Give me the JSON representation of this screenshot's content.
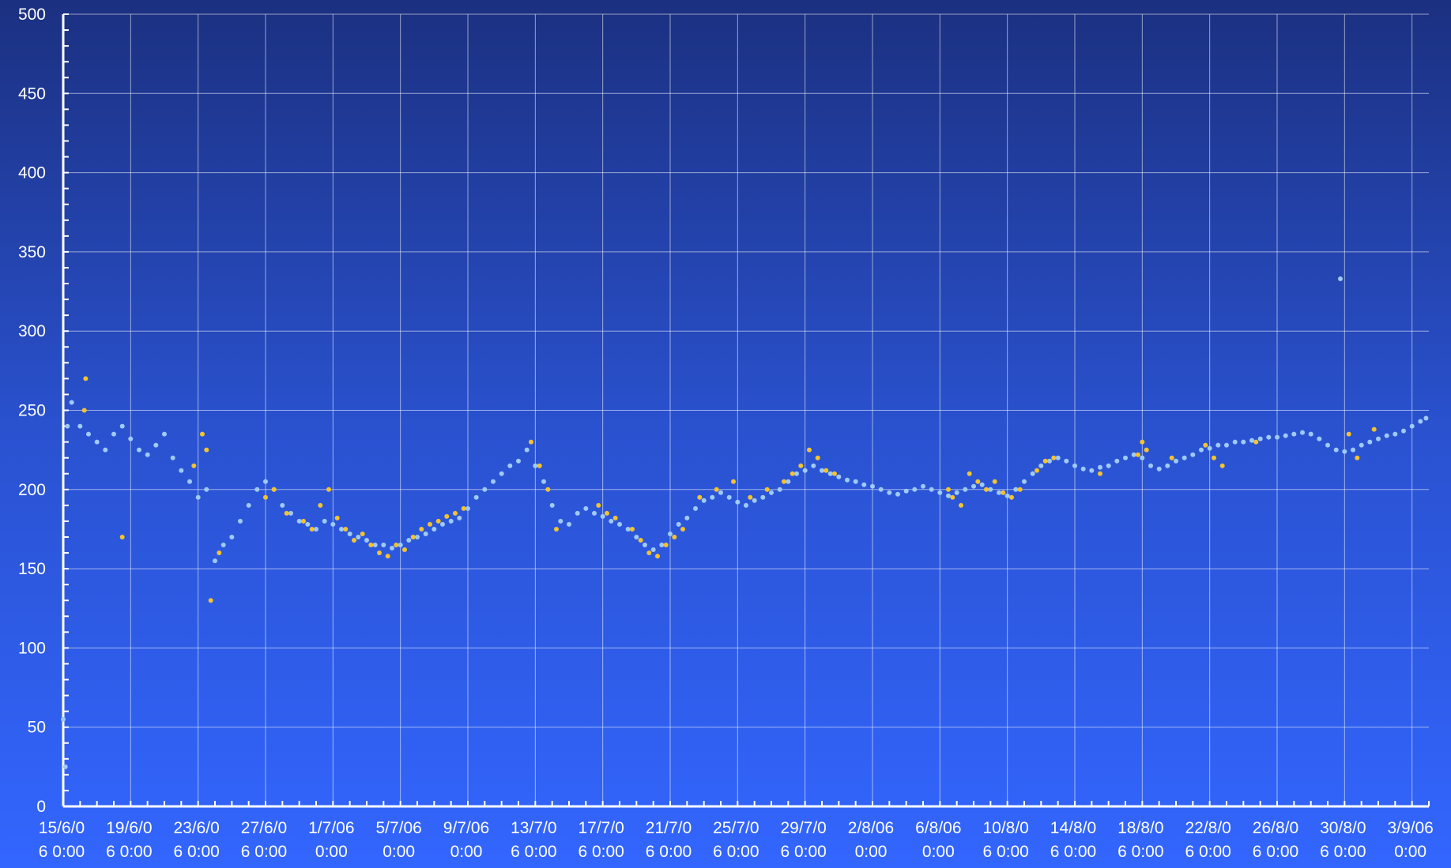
{
  "chart_data": {
    "type": "scatter",
    "title": "",
    "xlabel": "",
    "ylabel": "",
    "ylim": [
      0,
      500
    ],
    "y_ticks": [
      0,
      50,
      100,
      150,
      200,
      250,
      300,
      350,
      400,
      450,
      500
    ],
    "x_tick_labels": [
      [
        "15/6/0",
        "6 0:00"
      ],
      [
        "19/6/0",
        "6 0:00"
      ],
      [
        "23/6/0",
        "6 0:00"
      ],
      [
        "27/6/0",
        "6 0:00"
      ],
      [
        "1/7/06",
        "0:00"
      ],
      [
        "5/7/06",
        "0:00"
      ],
      [
        "9/7/06",
        "0:00"
      ],
      [
        "13/7/0",
        "6 0:00"
      ],
      [
        "17/7/0",
        "6 0:00"
      ],
      [
        "21/7/0",
        "6 0:00"
      ],
      [
        "25/7/0",
        "6 0:00"
      ],
      [
        "29/7/0",
        "6 0:00"
      ],
      [
        "2/8/06",
        "0:00"
      ],
      [
        "6/8/06",
        "0:00"
      ],
      [
        "10/8/0",
        "6 0:00"
      ],
      [
        "14/8/0",
        "6 0:00"
      ],
      [
        "18/8/0",
        "6 0:00"
      ],
      [
        "22/8/0",
        "6 0:00"
      ],
      [
        "26/8/0",
        "6 0:00"
      ],
      [
        "30/8/0",
        "6 0:00"
      ],
      [
        "3/9/06",
        "0:00"
      ]
    ],
    "x_range": [
      "15/6/06 0:00",
      "4/9/06 0:00"
    ],
    "grid": true,
    "legend": "none",
    "series": [
      {
        "color": "#9fcaf8",
        "points": [
          [
            "15/6/06 0:00",
            55
          ],
          [
            "15/6/06 3:00",
            25
          ],
          [
            "15/6/06 6:00",
            240
          ],
          [
            "15/6/06 12:00",
            255
          ],
          [
            "16/6/06 0:00",
            240
          ],
          [
            "16/6/06 12:00",
            235
          ],
          [
            "17/6/06 0:00",
            230
          ],
          [
            "17/6/06 12:00",
            225
          ],
          [
            "18/6/06 0:00",
            235
          ],
          [
            "18/6/06 12:00",
            240
          ],
          [
            "19/6/06 0:00",
            232
          ],
          [
            "19/6/06 12:00",
            225
          ],
          [
            "20/6/06 0:00",
            222
          ],
          [
            "20/6/06 12:00",
            228
          ],
          [
            "21/6/06 0:00",
            235
          ],
          [
            "21/6/06 12:00",
            220
          ],
          [
            "22/6/06 0:00",
            212
          ],
          [
            "22/6/06 12:00",
            205
          ],
          [
            "23/6/06 0:00",
            195
          ],
          [
            "23/6/06 12:00",
            200
          ],
          [
            "24/6/06 0:00",
            155
          ],
          [
            "24/6/06 12:00",
            165
          ],
          [
            "25/6/06 0:00",
            170
          ],
          [
            "25/6/06 12:00",
            180
          ],
          [
            "26/6/06 0:00",
            190
          ],
          [
            "26/6/06 12:00",
            200
          ],
          [
            "27/6/06 0:00",
            205
          ],
          [
            "27/6/06 12:00",
            200
          ],
          [
            "28/6/06 0:00",
            190
          ],
          [
            "28/6/06 12:00",
            185
          ],
          [
            "29/6/06 0:00",
            180
          ],
          [
            "29/6/06 12:00",
            178
          ],
          [
            "30/6/06 0:00",
            175
          ],
          [
            "30/6/06 12:00",
            180
          ],
          [
            "1/7/06 0:00",
            178
          ],
          [
            "1/7/06 12:00",
            175
          ],
          [
            "2/7/06 0:00",
            172
          ],
          [
            "2/7/06 12:00",
            170
          ],
          [
            "3/7/06 0:00",
            168
          ],
          [
            "3/7/06 12:00",
            165
          ],
          [
            "4/7/06 0:00",
            165
          ],
          [
            "4/7/06 12:00",
            163
          ],
          [
            "5/7/06 0:00",
            165
          ],
          [
            "5/7/06 12:00",
            168
          ],
          [
            "6/7/06 0:00",
            170
          ],
          [
            "6/7/06 12:00",
            172
          ],
          [
            "7/7/06 0:00",
            175
          ],
          [
            "7/7/06 12:00",
            178
          ],
          [
            "8/7/06 0:00",
            180
          ],
          [
            "8/7/06 12:00",
            182
          ],
          [
            "9/7/06 0:00",
            188
          ],
          [
            "9/7/06 12:00",
            195
          ],
          [
            "10/7/06 0:00",
            200
          ],
          [
            "10/7/06 12:00",
            205
          ],
          [
            "11/7/06 0:00",
            210
          ],
          [
            "11/7/06 12:00",
            215
          ],
          [
            "12/7/06 0:00",
            218
          ],
          [
            "12/7/06 12:00",
            225
          ],
          [
            "13/7/06 0:00",
            215
          ],
          [
            "13/7/06 12:00",
            205
          ],
          [
            "14/7/06 0:00",
            190
          ],
          [
            "14/7/06 12:00",
            180
          ],
          [
            "15/7/06 0:00",
            178
          ],
          [
            "15/7/06 12:00",
            185
          ],
          [
            "16/7/06 0:00",
            188
          ],
          [
            "16/7/06 12:00",
            185
          ],
          [
            "17/7/06 0:00",
            183
          ],
          [
            "17/7/06 12:00",
            180
          ],
          [
            "18/7/06 0:00",
            178
          ],
          [
            "18/7/06 12:00",
            175
          ],
          [
            "19/7/06 0:00",
            170
          ],
          [
            "19/7/06 12:00",
            165
          ],
          [
            "20/7/06 0:00",
            162
          ],
          [
            "20/7/06 12:00",
            165
          ],
          [
            "21/7/06 0:00",
            172
          ],
          [
            "21/7/06 12:00",
            178
          ],
          [
            "22/7/06 0:00",
            182
          ],
          [
            "22/7/06 12:00",
            188
          ],
          [
            "23/7/06 0:00",
            193
          ],
          [
            "23/7/06 12:00",
            195
          ],
          [
            "24/7/06 0:00",
            198
          ],
          [
            "24/7/06 12:00",
            195
          ],
          [
            "25/7/06 0:00",
            192
          ],
          [
            "25/7/06 12:00",
            190
          ],
          [
            "26/7/06 0:00",
            193
          ],
          [
            "26/7/06 12:00",
            195
          ],
          [
            "27/7/06 0:00",
            198
          ],
          [
            "27/7/06 12:00",
            200
          ],
          [
            "28/7/06 0:00",
            205
          ],
          [
            "28/7/06 12:00",
            210
          ],
          [
            "29/7/06 0:00",
            212
          ],
          [
            "29/7/06 12:00",
            215
          ],
          [
            "30/7/06 0:00",
            212
          ],
          [
            "30/7/06 12:00",
            210
          ],
          [
            "31/7/06 0:00",
            208
          ],
          [
            "31/7/06 12:00",
            206
          ],
          [
            "1/8/06 0:00",
            205
          ],
          [
            "1/8/06 12:00",
            203
          ],
          [
            "2/8/06 0:00",
            202
          ],
          [
            "2/8/06 12:00",
            200
          ],
          [
            "3/8/06 0:00",
            198
          ],
          [
            "3/8/06 12:00",
            197
          ],
          [
            "4/8/06 0:00",
            199
          ],
          [
            "4/8/06 12:00",
            200
          ],
          [
            "5/8/06 0:00",
            202
          ],
          [
            "5/8/06 12:00",
            200
          ],
          [
            "6/8/06 0:00",
            198
          ],
          [
            "6/8/06 12:00",
            196
          ],
          [
            "7/8/06 0:00",
            198
          ],
          [
            "7/8/06 12:00",
            200
          ],
          [
            "8/8/06 0:00",
            202
          ],
          [
            "8/8/06 12:00",
            203
          ],
          [
            "9/8/06 0:00",
            200
          ],
          [
            "9/8/06 12:00",
            198
          ],
          [
            "10/8/06 0:00",
            196
          ],
          [
            "10/8/06 12:00",
            200
          ],
          [
            "11/8/06 0:00",
            205
          ],
          [
            "11/8/06 12:00",
            210
          ],
          [
            "12/8/06 0:00",
            215
          ],
          [
            "12/8/06 12:00",
            218
          ],
          [
            "13/8/06 0:00",
            220
          ],
          [
            "13/8/06 12:00",
            218
          ],
          [
            "14/8/06 0:00",
            215
          ],
          [
            "14/8/06 12:00",
            213
          ],
          [
            "15/8/06 0:00",
            212
          ],
          [
            "15/8/06 12:00",
            214
          ],
          [
            "16/8/06 0:00",
            215
          ],
          [
            "16/8/06 12:00",
            218
          ],
          [
            "17/8/06 0:00",
            220
          ],
          [
            "17/8/06 12:00",
            222
          ],
          [
            "18/8/06 0:00",
            220
          ],
          [
            "18/8/06 12:00",
            215
          ],
          [
            "19/8/06 0:00",
            213
          ],
          [
            "19/8/06 12:00",
            215
          ],
          [
            "20/8/06 0:00",
            218
          ],
          [
            "20/8/06 12:00",
            220
          ],
          [
            "21/8/06 0:00",
            222
          ],
          [
            "21/8/06 12:00",
            225
          ],
          [
            "22/8/06 0:00",
            226
          ],
          [
            "22/8/06 12:00",
            228
          ],
          [
            "23/8/06 0:00",
            228
          ],
          [
            "23/8/06 12:00",
            230
          ],
          [
            "24/8/06 0:00",
            230
          ],
          [
            "24/8/06 12:00",
            231
          ],
          [
            "25/8/06 0:00",
            232
          ],
          [
            "25/8/06 12:00",
            233
          ],
          [
            "26/8/06 0:00",
            233
          ],
          [
            "26/8/06 12:00",
            234
          ],
          [
            "27/8/06 0:00",
            235
          ],
          [
            "27/8/06 12:00",
            236
          ],
          [
            "28/8/06 0:00",
            235
          ],
          [
            "28/8/06 12:00",
            232
          ],
          [
            "29/8/06 0:00",
            228
          ],
          [
            "29/8/06 12:00",
            225
          ],
          [
            "29/8/06 18:00",
            333
          ],
          [
            "30/8/06 0:00",
            224
          ],
          [
            "30/8/06 12:00",
            225
          ],
          [
            "31/8/06 0:00",
            228
          ],
          [
            "31/8/06 12:00",
            230
          ],
          [
            "1/9/06 0:00",
            232
          ],
          [
            "1/9/06 12:00",
            234
          ],
          [
            "2/9/06 0:00",
            235
          ],
          [
            "2/9/06 12:00",
            237
          ],
          [
            "3/9/06 0:00",
            240
          ],
          [
            "3/9/06 12:00",
            243
          ],
          [
            "3/9/06 20:00",
            245
          ]
        ]
      },
      {
        "color": "#f4c32f",
        "points": [
          [
            "16/6/06 6:00",
            250
          ],
          [
            "16/6/06 8:00",
            270
          ],
          [
            "18/6/06 12:00",
            170
          ],
          [
            "22/6/06 18:00",
            215
          ],
          [
            "23/6/06 6:00",
            235
          ],
          [
            "23/6/06 12:00",
            225
          ],
          [
            "23/6/06 18:00",
            130
          ],
          [
            "24/6/06 6:00",
            160
          ],
          [
            "27/6/06 0:00",
            195
          ],
          [
            "27/6/06 12:00",
            200
          ],
          [
            "28/6/06 6:00",
            185
          ],
          [
            "29/6/06 6:00",
            180
          ],
          [
            "29/6/06 18:00",
            175
          ],
          [
            "30/6/06 6:00",
            190
          ],
          [
            "30/6/06 18:00",
            200
          ],
          [
            "1/7/06 6:00",
            182
          ],
          [
            "1/7/06 18:00",
            175
          ],
          [
            "2/7/06 6:00",
            168
          ],
          [
            "2/7/06 18:00",
            172
          ],
          [
            "3/7/06 6:00",
            165
          ],
          [
            "3/7/06 18:00",
            160
          ],
          [
            "4/7/06 6:00",
            158
          ],
          [
            "4/7/06 18:00",
            165
          ],
          [
            "5/7/06 6:00",
            162
          ],
          [
            "5/7/06 18:00",
            170
          ],
          [
            "6/7/06 6:00",
            175
          ],
          [
            "6/7/06 18:00",
            178
          ],
          [
            "7/7/06 6:00",
            180
          ],
          [
            "7/7/06 18:00",
            183
          ],
          [
            "8/7/06 6:00",
            185
          ],
          [
            "8/7/06 18:00",
            188
          ],
          [
            "12/7/06 18:00",
            230
          ],
          [
            "13/7/06 6:00",
            215
          ],
          [
            "13/7/06 18:00",
            200
          ],
          [
            "14/7/06 6:00",
            175
          ],
          [
            "16/7/06 18:00",
            190
          ],
          [
            "17/7/06 6:00",
            185
          ],
          [
            "17/7/06 18:00",
            182
          ],
          [
            "18/7/06 18:00",
            175
          ],
          [
            "19/7/06 6:00",
            168
          ],
          [
            "19/7/06 18:00",
            160
          ],
          [
            "20/7/06 6:00",
            158
          ],
          [
            "20/7/06 18:00",
            165
          ],
          [
            "21/7/06 6:00",
            170
          ],
          [
            "21/7/06 18:00",
            175
          ],
          [
            "22/7/06 18:00",
            195
          ],
          [
            "23/7/06 18:00",
            200
          ],
          [
            "24/7/06 18:00",
            205
          ],
          [
            "25/7/06 18:00",
            195
          ],
          [
            "26/7/06 18:00",
            200
          ],
          [
            "27/7/06 18:00",
            205
          ],
          [
            "28/7/06 6:00",
            210
          ],
          [
            "28/7/06 18:00",
            215
          ],
          [
            "29/7/06 6:00",
            225
          ],
          [
            "29/7/06 18:00",
            220
          ],
          [
            "30/7/06 6:00",
            212
          ],
          [
            "30/7/06 18:00",
            210
          ],
          [
            "6/8/06 12:00",
            200
          ],
          [
            "6/8/06 18:00",
            195
          ],
          [
            "7/8/06 6:00",
            190
          ],
          [
            "7/8/06 18:00",
            210
          ],
          [
            "8/8/06 6:00",
            205
          ],
          [
            "8/8/06 18:00",
            200
          ],
          [
            "9/8/06 6:00",
            205
          ],
          [
            "9/8/06 18:00",
            198
          ],
          [
            "10/8/06 6:00",
            195
          ],
          [
            "10/8/06 18:00",
            200
          ],
          [
            "11/8/06 18:00",
            212
          ],
          [
            "12/8/06 6:00",
            218
          ],
          [
            "12/8/06 18:00",
            220
          ],
          [
            "15/8/06 12:00",
            210
          ],
          [
            "17/8/06 18:00",
            222
          ],
          [
            "18/8/06 0:00",
            230
          ],
          [
            "18/8/06 6:00",
            225
          ],
          [
            "19/8/06 18:00",
            220
          ],
          [
            "21/8/06 18:00",
            228
          ],
          [
            "22/8/06 6:00",
            220
          ],
          [
            "22/8/06 18:00",
            215
          ],
          [
            "24/8/06 18:00",
            230
          ],
          [
            "30/8/06 6:00",
            235
          ],
          [
            "30/8/06 18:00",
            220
          ],
          [
            "31/8/06 18:00",
            238
          ]
        ]
      }
    ]
  }
}
